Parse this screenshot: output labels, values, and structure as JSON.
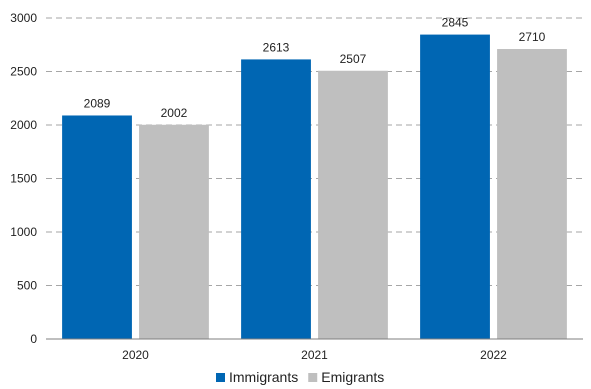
{
  "chart_data": {
    "type": "bar",
    "categories": [
      "2020",
      "2021",
      "2022"
    ],
    "series": [
      {
        "name": "Immigrants",
        "color": "#0066b3",
        "values": [
          2089,
          2613,
          2845
        ]
      },
      {
        "name": "Emigrants",
        "color": "#bfbfbf",
        "values": [
          2002,
          2507,
          2710
        ]
      }
    ],
    "ylim": [
      0,
      3000
    ],
    "yticks": [
      0,
      500,
      1000,
      1500,
      2000,
      2500,
      3000
    ],
    "grid": true,
    "legend_position": "bottom-center"
  }
}
